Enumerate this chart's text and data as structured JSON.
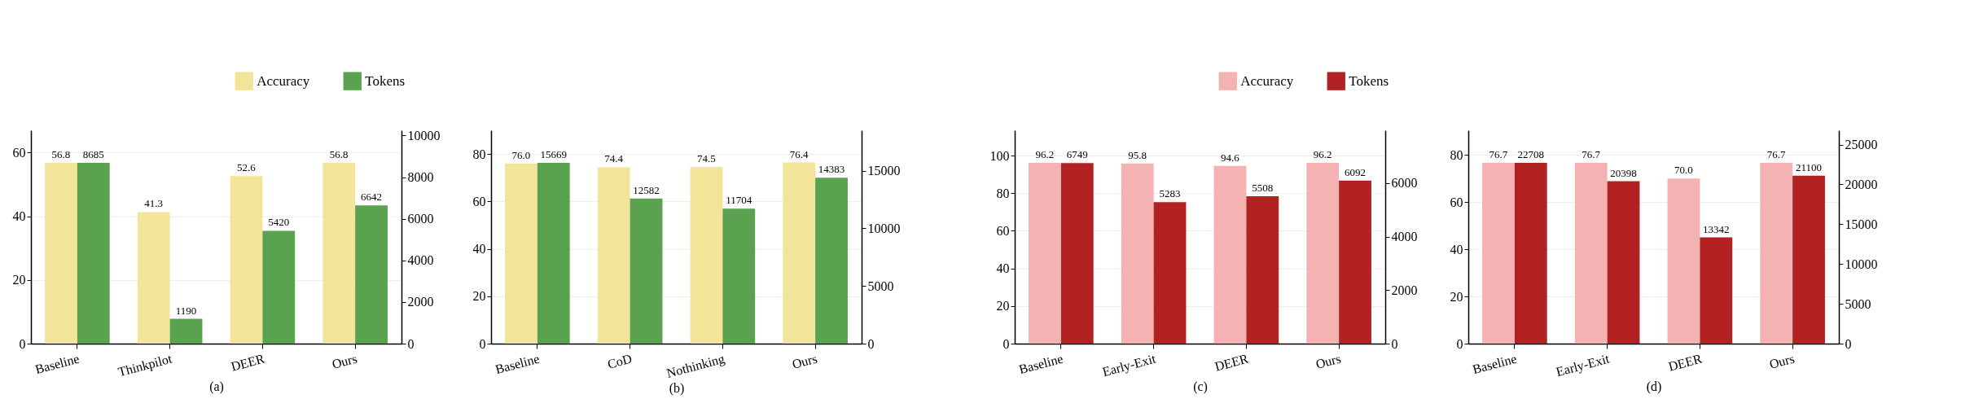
{
  "chart_data": [
    {
      "type": "bar",
      "xlabel": "(a)",
      "categories": [
        "Baseline",
        "Thinkpilot",
        "DEER",
        "Ours"
      ],
      "series": [
        {
          "name": "Accuracy",
          "color": "#f2e59a",
          "values": [
            56.8,
            41.3,
            52.6,
            56.8
          ],
          "value_labels": [
            "56.8",
            "41.3",
            "52.6",
            "56.8"
          ]
        },
        {
          "name": "Tokens",
          "color": "#5aa150",
          "values": [
            8685,
            1190,
            5420,
            6642
          ],
          "data_labels": true,
          "axis": "y2"
        }
      ],
      "ylim": [
        0,
        67
      ],
      "yticks": [
        0,
        20,
        40,
        60
      ],
      "y2lim": [
        0,
        10250
      ],
      "y2ticks": [
        0,
        2000,
        4000,
        6000,
        8000,
        10000
      ],
      "grid": "y",
      "legend": "top"
    },
    {
      "type": "bar",
      "xlabel": "(b)",
      "categories": [
        "Baseline",
        "CoD",
        "Nothinking",
        "Ours"
      ],
      "series": [
        {
          "color": "#f2e59a",
          "values": [
            76.0,
            74.4,
            74.5,
            76.4
          ],
          "value_labels": [
            "76.0",
            "74.4",
            "74.5",
            "76.4"
          ]
        },
        {
          "color": "#5aa150",
          "values": [
            15669,
            12582,
            11704,
            14383
          ],
          "data_labels": true,
          "axis": "y2"
        }
      ],
      "ylim": [
        0,
        90
      ],
      "yticks": [
        0,
        20,
        40,
        60,
        80
      ],
      "y2lim": [
        0,
        18500
      ],
      "y2ticks": [
        0,
        5000,
        10000,
        15000
      ],
      "grid": "y"
    },
    {
      "type": "bar",
      "xlabel": "(c)",
      "categories": [
        "Baseline",
        "Early-Exit",
        "DEER",
        "Ours"
      ],
      "series": [
        {
          "name": "Accuracy",
          "color": "#f4b2b2",
          "values": [
            96.2,
            95.8,
            94.6,
            96.2
          ],
          "value_labels": [
            "96.2",
            "95.8",
            "94.6",
            "96.2"
          ]
        },
        {
          "name": "Tokens",
          "color": "#b22222",
          "values": [
            6749,
            5283,
            5508,
            6092
          ],
          "data_labels": true,
          "axis": "y2"
        }
      ],
      "ylim": [
        0,
        113.5
      ],
      "yticks": [
        0,
        20,
        40,
        60,
        80,
        100
      ],
      "y2lim": [
        0,
        7970
      ],
      "y2ticks": [
        0,
        2000,
        4000,
        6000
      ],
      "grid": "y",
      "legend": "top"
    },
    {
      "type": "bar",
      "xlabel": "(d)",
      "categories": [
        "Baseline",
        "Early-Exit",
        "DEER",
        "Ours"
      ],
      "series": [
        {
          "color": "#f4b2b2",
          "values": [
            76.7,
            76.7,
            70.0,
            76.7
          ],
          "value_labels": [
            "76.7",
            "76.7",
            "70.0",
            "76.7"
          ]
        },
        {
          "color": "#b22222",
          "values": [
            22708,
            20398,
            13342,
            21100
          ],
          "data_labels": true,
          "axis": "y2"
        }
      ],
      "ylim": [
        0,
        90.5
      ],
      "yticks": [
        0,
        20,
        40,
        60,
        80
      ],
      "y2lim": [
        0,
        26795
      ],
      "y2ticks": [
        0,
        5000,
        10000,
        15000,
        20000,
        25000
      ],
      "grid": "y"
    }
  ]
}
